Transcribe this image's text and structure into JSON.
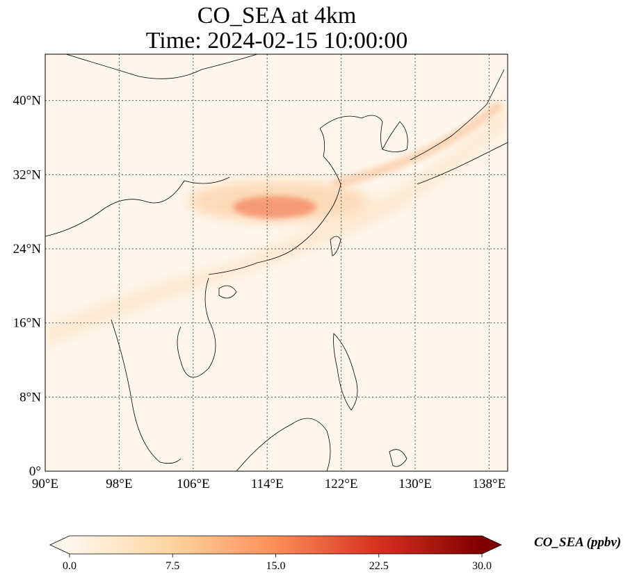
{
  "title": {
    "line1": "CO_SEA at 4km",
    "line2": "Time: 2024-02-15 10:00:00"
  },
  "map": {
    "projection": "PlateCarree",
    "lon_range": [
      90,
      140
    ],
    "lat_range": [
      0,
      45
    ],
    "gridlines": "dotted",
    "lon_ticks": [
      {
        "value": 90,
        "label": "90°E"
      },
      {
        "value": 98,
        "label": "98°E"
      },
      {
        "value": 106,
        "label": "106°E"
      },
      {
        "value": 114,
        "label": "114°E"
      },
      {
        "value": 122,
        "label": "122°E"
      },
      {
        "value": 130,
        "label": "130°E"
      },
      {
        "value": 138,
        "label": "138°E"
      }
    ],
    "lat_ticks": [
      {
        "value": 0,
        "label": "0°"
      },
      {
        "value": 8,
        "label": "8°N"
      },
      {
        "value": 16,
        "label": "16°N"
      },
      {
        "value": 24,
        "label": "24°N"
      },
      {
        "value": 32,
        "label": "32°N"
      },
      {
        "value": 40,
        "label": "40°N"
      }
    ],
    "variable": "CO_SEA",
    "plume_core": {
      "lon": 114,
      "lat": 28.5
    },
    "colors": {
      "low": "#fff5eb",
      "mid": "#fdae6b",
      "high": "#7f0000",
      "coast": "#000000"
    }
  },
  "colorbar": {
    "label": "CO_SEA (ppbv)",
    "min": 0.0,
    "max": 30.0,
    "ticks": [
      "0.0",
      "7.5",
      "15.0",
      "22.5",
      "30.0"
    ],
    "colormap": "OrRd",
    "extend": "both"
  }
}
